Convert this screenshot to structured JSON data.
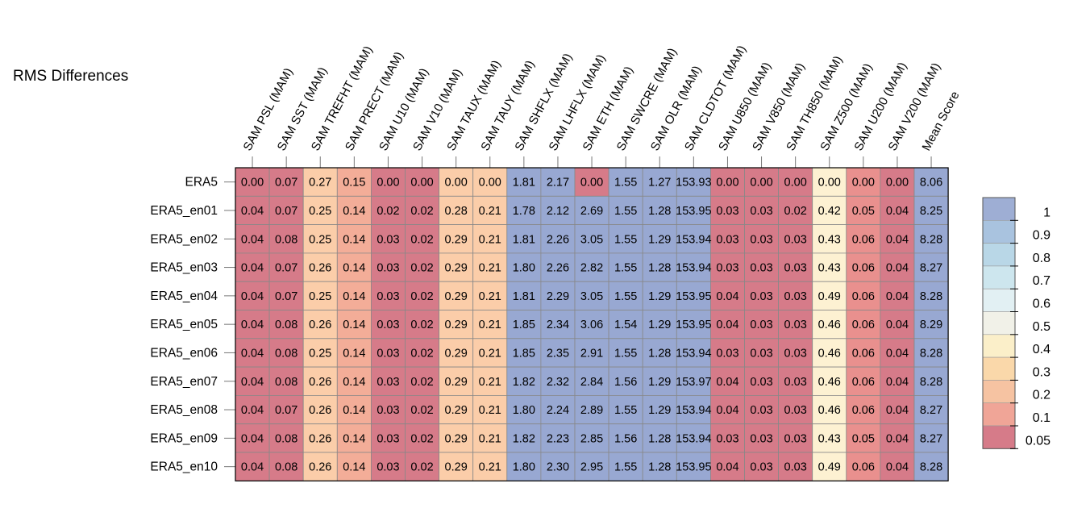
{
  "chart_data": {
    "type": "heatmap",
    "title": "RMS Differences",
    "columns": [
      "SAM PSL (MAM)",
      "SAM SST (MAM)",
      "SAM TREFHT (MAM)",
      "SAM PRECT (MAM)",
      "SAM U10 (MAM)",
      "SAM V10 (MAM)",
      "SAM TAUX (MAM)",
      "SAM TAUY (MAM)",
      "SAM SHFLX (MAM)",
      "SAM LHFLX (MAM)",
      "SAM ETH (MAM)",
      "SAM SWCRE (MAM)",
      "SAM OLR (MAM)",
      "SAM CLDTOT (MAM)",
      "SAM U850 (MAM)",
      "SAM V850 (MAM)",
      "SAM TH850 (MAM)",
      "SAM Z500 (MAM)",
      "SAM U200 (MAM)",
      "SAM V200 (MAM)",
      "Mean Score"
    ],
    "rows": [
      "ERA5",
      "ERA5_en01",
      "ERA5_en02",
      "ERA5_en03",
      "ERA5_en04",
      "ERA5_en05",
      "ERA5_en06",
      "ERA5_en07",
      "ERA5_en08",
      "ERA5_en09",
      "ERA5_en10"
    ],
    "cells": [
      [
        "0.00",
        "0.07",
        "0.27",
        "0.15",
        "0.00",
        "0.00",
        "0.00",
        "0.00",
        "1.81",
        "2.17",
        "0.00",
        "1.55",
        "1.27",
        "153.93",
        "0.00",
        "0.00",
        "0.00",
        "0.00",
        "0.00",
        "0.00",
        "8.06"
      ],
      [
        "0.04",
        "0.07",
        "0.25",
        "0.14",
        "0.02",
        "0.02",
        "0.28",
        "0.21",
        "1.78",
        "2.12",
        "2.69",
        "1.55",
        "1.28",
        "153.95",
        "0.03",
        "0.03",
        "0.02",
        "0.42",
        "0.05",
        "0.04",
        "8.25"
      ],
      [
        "0.04",
        "0.08",
        "0.25",
        "0.14",
        "0.03",
        "0.02",
        "0.29",
        "0.21",
        "1.81",
        "2.26",
        "3.05",
        "1.55",
        "1.29",
        "153.94",
        "0.03",
        "0.03",
        "0.03",
        "0.43",
        "0.06",
        "0.04",
        "8.28"
      ],
      [
        "0.04",
        "0.07",
        "0.26",
        "0.14",
        "0.03",
        "0.02",
        "0.29",
        "0.21",
        "1.80",
        "2.26",
        "2.82",
        "1.55",
        "1.28",
        "153.94",
        "0.03",
        "0.03",
        "0.03",
        "0.43",
        "0.06",
        "0.04",
        "8.27"
      ],
      [
        "0.04",
        "0.07",
        "0.25",
        "0.14",
        "0.03",
        "0.02",
        "0.29",
        "0.21",
        "1.81",
        "2.29",
        "3.05",
        "1.55",
        "1.29",
        "153.95",
        "0.04",
        "0.03",
        "0.03",
        "0.49",
        "0.06",
        "0.04",
        "8.28"
      ],
      [
        "0.04",
        "0.08",
        "0.26",
        "0.14",
        "0.03",
        "0.02",
        "0.29",
        "0.21",
        "1.85",
        "2.34",
        "3.06",
        "1.54",
        "1.29",
        "153.95",
        "0.04",
        "0.03",
        "0.03",
        "0.46",
        "0.06",
        "0.04",
        "8.29"
      ],
      [
        "0.04",
        "0.08",
        "0.25",
        "0.14",
        "0.03",
        "0.02",
        "0.29",
        "0.21",
        "1.85",
        "2.35",
        "2.91",
        "1.55",
        "1.28",
        "153.94",
        "0.03",
        "0.03",
        "0.03",
        "0.46",
        "0.06",
        "0.04",
        "8.28"
      ],
      [
        "0.04",
        "0.08",
        "0.26",
        "0.14",
        "0.03",
        "0.02",
        "0.29",
        "0.21",
        "1.82",
        "2.32",
        "2.84",
        "1.56",
        "1.29",
        "153.97",
        "0.04",
        "0.03",
        "0.03",
        "0.46",
        "0.06",
        "0.04",
        "8.28"
      ],
      [
        "0.04",
        "0.07",
        "0.26",
        "0.14",
        "0.03",
        "0.02",
        "0.29",
        "0.21",
        "1.80",
        "2.24",
        "2.89",
        "1.55",
        "1.29",
        "153.94",
        "0.04",
        "0.03",
        "0.03",
        "0.46",
        "0.06",
        "0.04",
        "8.27"
      ],
      [
        "0.04",
        "0.08",
        "0.26",
        "0.14",
        "0.03",
        "0.02",
        "0.29",
        "0.21",
        "1.82",
        "2.23",
        "2.85",
        "1.56",
        "1.28",
        "153.94",
        "0.03",
        "0.03",
        "0.03",
        "0.43",
        "0.05",
        "0.04",
        "8.27"
      ],
      [
        "0.04",
        "0.08",
        "0.26",
        "0.14",
        "0.03",
        "0.02",
        "0.29",
        "0.21",
        "1.80",
        "2.30",
        "2.95",
        "1.55",
        "1.28",
        "153.95",
        "0.04",
        "0.03",
        "0.03",
        "0.49",
        "0.06",
        "0.04",
        "8.28"
      ]
    ],
    "column_color_level": [
      0.05,
      0.05,
      0.3,
      0.2,
      0.05,
      0.05,
      0.3,
      0.3,
      1,
      1,
      1,
      1,
      1,
      1,
      0.05,
      0.05,
      0.05,
      0.5,
      0.1,
      0.05,
      1
    ],
    "era5_eth_color_level": 0.05,
    "colorbar": {
      "ticks": [
        "1",
        "0.9",
        "0.8",
        "0.7",
        "0.6",
        "0.5",
        "0.4",
        "0.3",
        "0.2",
        "0.1",
        "0.05"
      ],
      "colors": [
        "#9eaed4",
        "#a9c3df",
        "#b9d7e7",
        "#cde6ee",
        "#e2f0f3",
        "#f1f1e8",
        "#fbefc9",
        "#fad8aa",
        "#f6c3a2",
        "#f0a597",
        "#d67b89"
      ]
    },
    "level_colors": {
      "0.05": "#d67b89",
      "0.1": "#e9908e",
      "0.2": "#f3ad98",
      "0.3": "#fbcda9",
      "0.5": "#fdf1d2",
      "1": "#98a8d2"
    },
    "grid_color": "#888888",
    "border_color": "#000000"
  }
}
